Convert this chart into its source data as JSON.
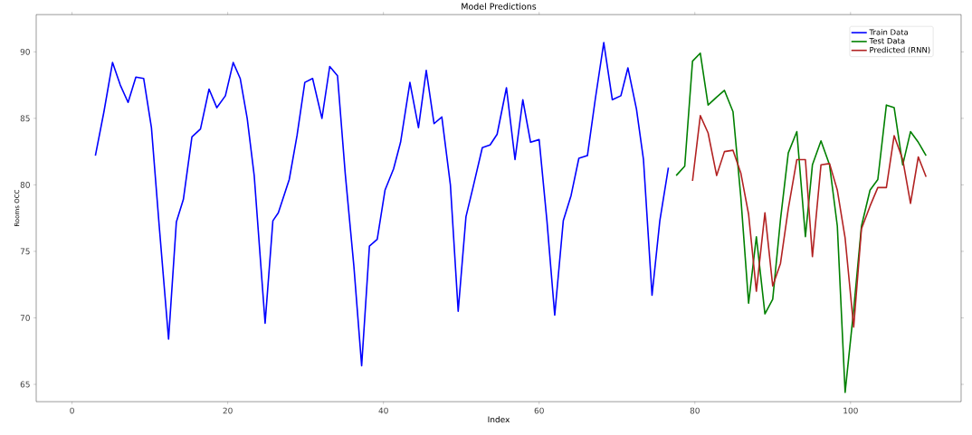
{
  "chart_data": {
    "type": "line",
    "title": "Model Predictions",
    "xlabel": "Index",
    "ylabel": "Rooms OCC",
    "xlim": [
      -4.6,
      114.2
    ],
    "ylim": [
      63.7,
      92.8
    ],
    "xticks": [
      0,
      20,
      40,
      60,
      80,
      100
    ],
    "yticks": [
      65,
      70,
      75,
      80,
      85,
      90
    ],
    "legend": "top right",
    "line_style": "solid",
    "series": [
      {
        "name": "Train Data",
        "color": "#0000ff",
        "x": [
          3.0,
          4.1,
          5.2,
          6.2,
          7.2,
          8.2,
          9.2,
          10.2,
          11.2,
          12.4,
          13.4,
          14.3,
          15.4,
          16.5,
          17.6,
          18.6,
          19.7,
          20.7,
          21.6,
          22.5,
          23.4,
          24.8,
          25.8,
          26.5,
          27.9,
          28.9,
          29.9,
          30.9,
          32.1,
          33.1,
          34.1,
          35.1,
          36.2,
          37.2,
          38.2,
          39.2,
          40.2,
          41.3,
          42.2,
          43.4,
          44.5,
          45.5,
          46.5,
          47.5,
          48.6,
          49.6,
          50.6,
          51.5,
          52.7,
          53.7,
          54.6,
          55.8,
          56.9,
          57.9,
          58.9,
          60.0,
          61.0,
          62.0,
          63.1,
          64.1,
          65.1,
          66.2,
          67.2,
          68.3,
          69.4,
          70.5,
          71.4,
          72.5,
          73.4,
          74.5,
          75.5,
          76.6
        ],
        "values": [
          82.2,
          85.5,
          89.2,
          87.5,
          86.2,
          88.1,
          88.0,
          84.3,
          76.9,
          68.4,
          77.2,
          78.9,
          83.6,
          84.2,
          87.2,
          85.8,
          86.7,
          89.2,
          88.0,
          85.0,
          80.7,
          69.6,
          77.3,
          77.9,
          80.4,
          83.7,
          87.7,
          88.0,
          85.0,
          88.9,
          88.2,
          80.8,
          73.9,
          66.4,
          75.4,
          75.9,
          79.6,
          81.2,
          83.2,
          87.7,
          84.3,
          88.6,
          84.6,
          85.1,
          80.0,
          70.5,
          77.6,
          79.8,
          82.8,
          83.0,
          83.8,
          87.3,
          81.9,
          86.4,
          83.2,
          83.4,
          77.3,
          70.2,
          77.3,
          79.2,
          82.0,
          82.2,
          86.4,
          90.7,
          86.4,
          86.7,
          88.8,
          85.7,
          81.9,
          71.7,
          77.3,
          81.3
        ]
      },
      {
        "name": "Test Data",
        "color": "#008000",
        "x": [
          77.6,
          78.7,
          79.7,
          80.7,
          81.7,
          82.8,
          83.8,
          84.9,
          85.9,
          86.9,
          87.9,
          89.0,
          90.0,
          91.0,
          92.0,
          93.1,
          94.2,
          95.1,
          96.2,
          97.3,
          98.3,
          99.3,
          100.4,
          101.4,
          102.5,
          103.5,
          104.6,
          105.6,
          106.7,
          107.7,
          108.7,
          109.7
        ],
        "values": [
          80.7,
          81.4,
          89.3,
          89.9,
          86.0,
          86.6,
          87.1,
          85.5,
          79.1,
          71.1,
          76.1,
          70.3,
          71.4,
          77.4,
          82.4,
          84.0,
          76.1,
          81.5,
          83.3,
          81.5,
          76.9,
          64.4,
          70.6,
          76.9,
          79.6,
          80.4,
          86.0,
          85.8,
          81.5,
          84.0,
          83.2,
          82.2
        ]
      },
      {
        "name": "Predicted (RNN)",
        "color": "#b22222",
        "x": [
          79.7,
          80.7,
          81.7,
          82.8,
          83.8,
          84.9,
          85.9,
          86.9,
          87.9,
          89.0,
          90.0,
          91.0,
          92.0,
          93.1,
          94.2,
          95.1,
          96.2,
          97.3,
          98.3,
          99.3,
          100.4,
          101.4,
          102.5,
          103.5,
          104.6,
          105.6,
          106.7,
          107.7,
          108.7,
          109.7
        ],
        "values": [
          80.3,
          85.2,
          83.9,
          80.7,
          82.5,
          82.6,
          80.9,
          77.8,
          72.0,
          77.9,
          72.4,
          74.1,
          78.2,
          81.9,
          81.9,
          74.6,
          81.5,
          81.6,
          79.6,
          76.0,
          69.3,
          76.7,
          78.4,
          79.8,
          79.8,
          83.7,
          81.9,
          78.6,
          82.1,
          80.6
        ]
      }
    ]
  }
}
